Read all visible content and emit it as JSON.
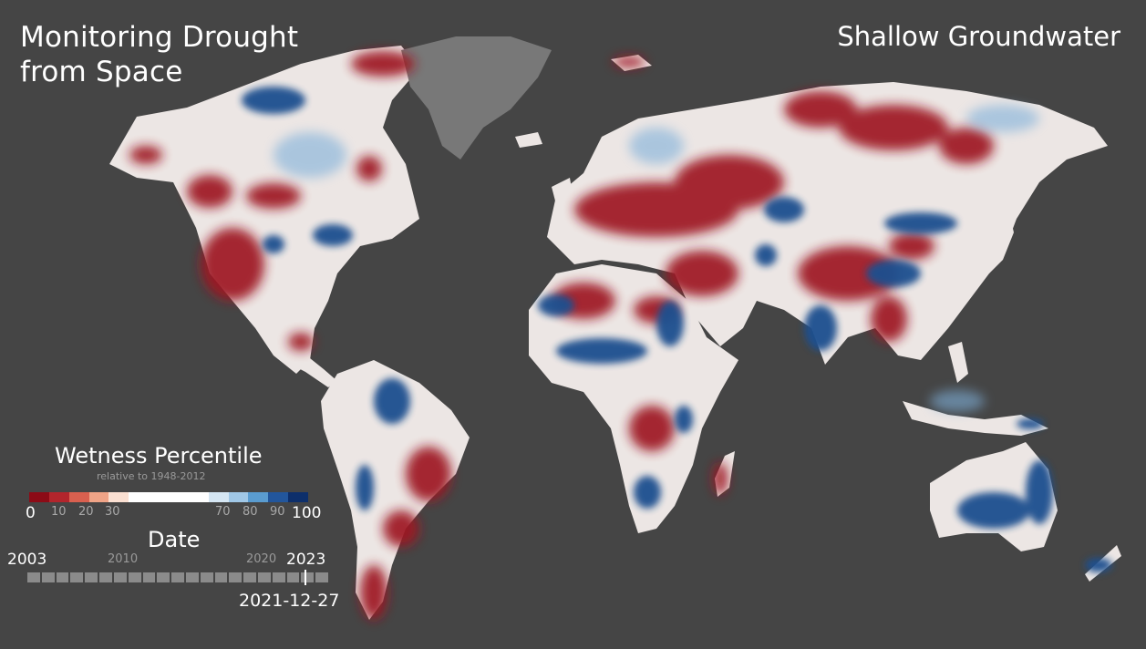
{
  "header": {
    "title_line1": "Monitoring Drought",
    "title_line2": "from Space",
    "layer_name": "Shallow Groundwater"
  },
  "legend": {
    "title": "Wetness Percentile",
    "subtitle": "relative to 1948-2012",
    "ticks": [
      "0",
      "10",
      "20",
      "30",
      "70",
      "80",
      "90",
      "100"
    ],
    "colors": [
      "#8c0b16",
      "#b3252c",
      "#d9604f",
      "#f0a487",
      "#fbe0d2",
      "#ffffff",
      "#ffffff",
      "#ffffff",
      "#ffffff",
      "#d5e6f3",
      "#a0c7e6",
      "#5a9cd0",
      "#22569c",
      "#0d2f6b"
    ]
  },
  "timeline": {
    "title": "Date",
    "start_year": "2003",
    "mid_year": "2010",
    "late_year": "2020",
    "end_year": "2023",
    "current_date": "2021-12-27",
    "progress": 0.92
  },
  "map": {
    "background_color": "#454545",
    "greenland_color": "#7a7a7a",
    "dry_color": "#9e1820",
    "wet_color": "#1d4f8f",
    "neutral_color": "#f2efee"
  }
}
